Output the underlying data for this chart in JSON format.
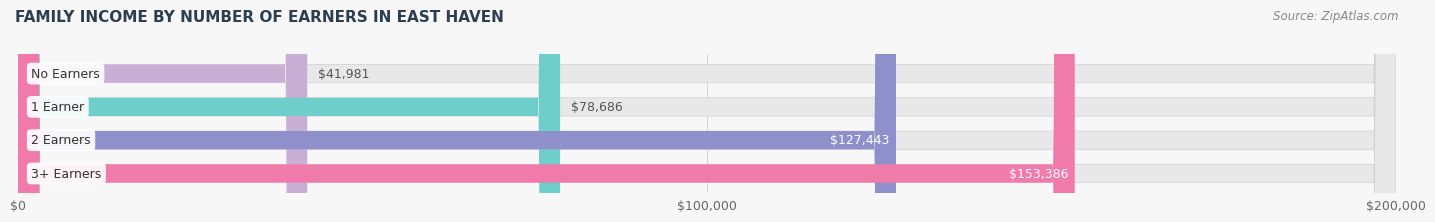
{
  "title": "FAMILY INCOME BY NUMBER OF EARNERS IN EAST HAVEN",
  "source": "Source: ZipAtlas.com",
  "categories": [
    "No Earners",
    "1 Earner",
    "2 Earners",
    "3+ Earners"
  ],
  "values": [
    41981,
    78686,
    127443,
    153386
  ],
  "labels": [
    "$41,981",
    "$78,686",
    "$127,443",
    "$153,386"
  ],
  "bar_colors": [
    "#c9aed6",
    "#6dceca",
    "#8f8fcc",
    "#f07aaa"
  ],
  "bar_bg_color": "#e8e8e8",
  "label_dark": "#555555",
  "label_white": "#ffffff",
  "label_threshold": 0.52,
  "xmax": 200000,
  "xticks": [
    0,
    100000,
    200000
  ],
  "xtick_labels": [
    "$0",
    "$100,000",
    "$200,000"
  ],
  "background_color": "#f7f7f7",
  "plot_bg_color": "#f0f0f0",
  "title_fontsize": 11,
  "source_fontsize": 8.5,
  "bar_label_fontsize": 9,
  "category_fontsize": 9,
  "tick_fontsize": 9,
  "bar_height": 0.55,
  "rounding_size": 3200
}
